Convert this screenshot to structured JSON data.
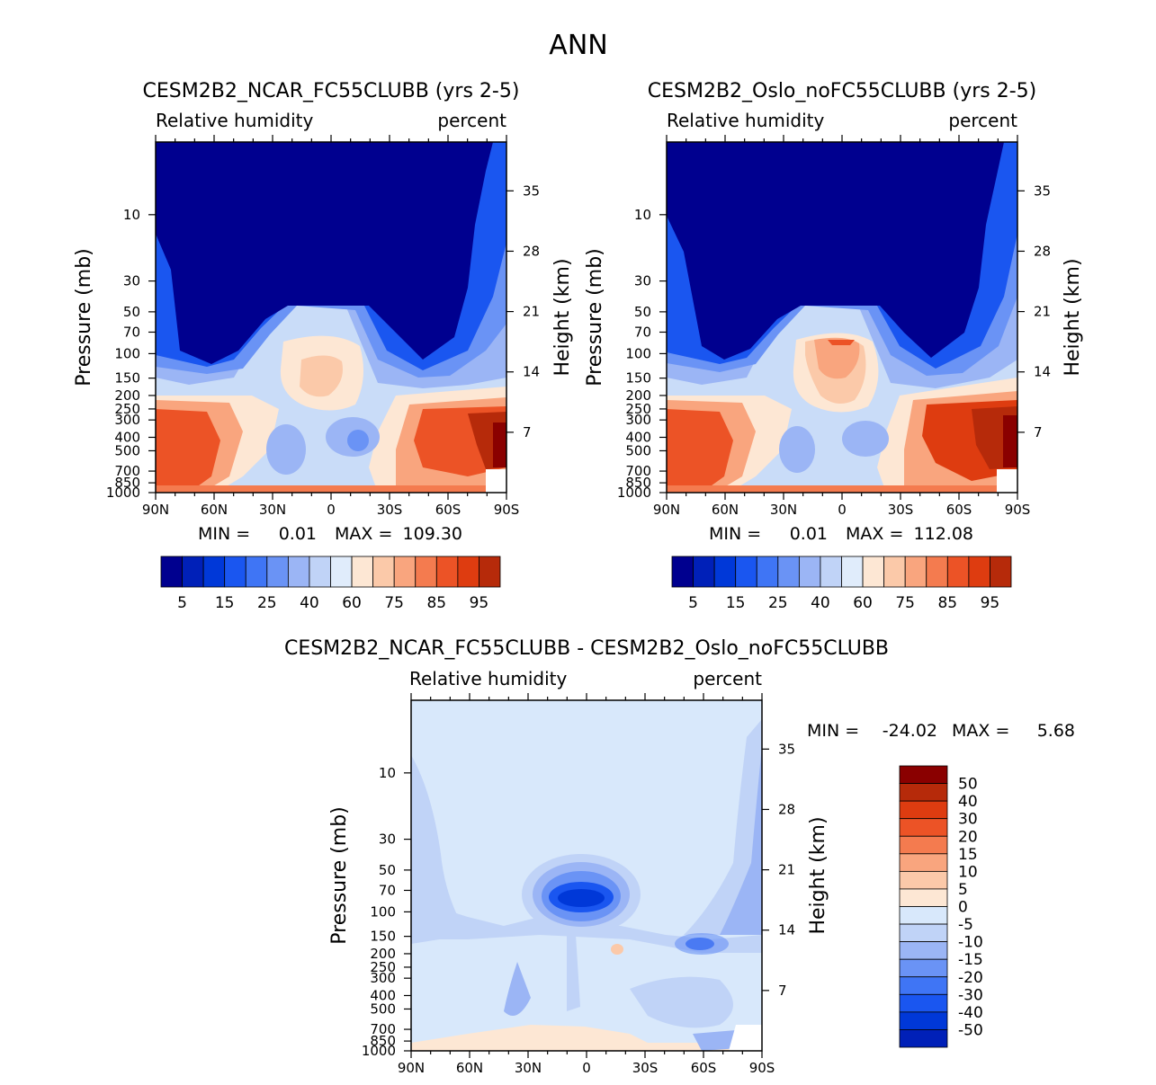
{
  "figure_title": "ANN",
  "colors": {
    "rh_levels": [
      "#00008f",
      "#0020b8",
      "#0038d8",
      "#1a56f0",
      "#3f75f5",
      "#6a93f5",
      "#9bb5f5",
      "#c0d3f7",
      "#e0ecfb",
      "#fde7d4",
      "#fbc9a9",
      "#f9a57e",
      "#f47b4f",
      "#ec5326",
      "#de3c10",
      "#b62a0a",
      "#8a0000"
    ],
    "diff_levels": [
      "#00008f",
      "#0020b8",
      "#0038d8",
      "#1a56f0",
      "#3f75f5",
      "#6a93f5",
      "#9bb5f5",
      "#c0d3f7",
      "#d8e8fb",
      "#fde7d4",
      "#fbc9a9",
      "#f9a57e",
      "#f47b4f",
      "#ec5326",
      "#de3c10",
      "#b62a0a",
      "#8a0000"
    ]
  },
  "chart_data": [
    {
      "type": "heatmap",
      "id": "ncar",
      "title": "CESM2B2_NCAR_FC55CLUBB (yrs 2-5)",
      "subtitle_left": "Relative humidity",
      "subtitle_right": "percent",
      "ylabel": "Pressure (mb)",
      "ylabel_right": "Height (km)",
      "xticks": [
        "90N",
        "60N",
        "30N",
        "0",
        "30S",
        "60S",
        "90S"
      ],
      "yticks": [
        "10",
        "30",
        "50",
        "70",
        "100",
        "150",
        "200",
        "250",
        "300",
        "400",
        "500",
        "700",
        "850",
        "1000"
      ],
      "ytick_values": [
        10,
        30,
        50,
        70,
        100,
        150,
        200,
        250,
        300,
        400,
        500,
        700,
        850,
        1000
      ],
      "height_ticks": [
        "35",
        "28",
        "21",
        "14",
        "7"
      ],
      "height_values": [
        35,
        28,
        21,
        14,
        7
      ],
      "ylim": [
        1000,
        3
      ],
      "stats": {
        "min_label": "MIN =",
        "min": "0.01",
        "max_label": "MAX =",
        "max": "109.30"
      },
      "colorbar_labels": [
        "5",
        "15",
        "25",
        "40",
        "60",
        "75",
        "85",
        "95"
      ]
    },
    {
      "type": "heatmap",
      "id": "oslo",
      "title": "CESM2B2_Oslo_noFC55CLUBB (yrs 2-5)",
      "subtitle_left": "Relative humidity",
      "subtitle_right": "percent",
      "ylabel": "Pressure (mb)",
      "ylabel_right": "Height (km)",
      "xticks": [
        "90N",
        "60N",
        "30N",
        "0",
        "30S",
        "60S",
        "90S"
      ],
      "yticks": [
        "10",
        "30",
        "50",
        "70",
        "100",
        "150",
        "200",
        "250",
        "300",
        "400",
        "500",
        "700",
        "850",
        "1000"
      ],
      "ytick_values": [
        10,
        30,
        50,
        70,
        100,
        150,
        200,
        250,
        300,
        400,
        500,
        700,
        850,
        1000
      ],
      "height_ticks": [
        "35",
        "28",
        "21",
        "14",
        "7"
      ],
      "height_values": [
        35,
        28,
        21,
        14,
        7
      ],
      "ylim": [
        1000,
        3
      ],
      "stats": {
        "min_label": "MIN =",
        "min": "0.01",
        "max_label": "MAX =",
        "max": "112.08"
      },
      "colorbar_labels": [
        "5",
        "15",
        "25",
        "40",
        "60",
        "75",
        "85",
        "95"
      ]
    },
    {
      "type": "heatmap",
      "id": "diff",
      "title": "CESM2B2_NCAR_FC55CLUBB - CESM2B2_Oslo_noFC55CLUBB",
      "subtitle_left": "Relative humidity",
      "subtitle_right": "percent",
      "ylabel": "Pressure (mb)",
      "ylabel_right": "Height (km)",
      "xticks": [
        "90N",
        "60N",
        "30N",
        "0",
        "30S",
        "60S",
        "90S"
      ],
      "yticks": [
        "10",
        "30",
        "50",
        "70",
        "100",
        "150",
        "200",
        "250",
        "300",
        "400",
        "500",
        "700",
        "850",
        "1000"
      ],
      "ytick_values": [
        10,
        30,
        50,
        70,
        100,
        150,
        200,
        250,
        300,
        400,
        500,
        700,
        850,
        1000
      ],
      "height_ticks": [
        "35",
        "28",
        "21",
        "14",
        "7"
      ],
      "height_values": [
        35,
        28,
        21,
        14,
        7
      ],
      "ylim": [
        1000,
        3
      ],
      "stats": {
        "min_label": "MIN =",
        "min": "-24.02",
        "max_label": "MAX =",
        "max": "5.68"
      },
      "colorbar_labels": [
        "50",
        "40",
        "30",
        "20",
        "15",
        "10",
        "5",
        "0",
        "-5",
        "-10",
        "-15",
        "-20",
        "-30",
        "-40",
        "-50"
      ]
    }
  ]
}
